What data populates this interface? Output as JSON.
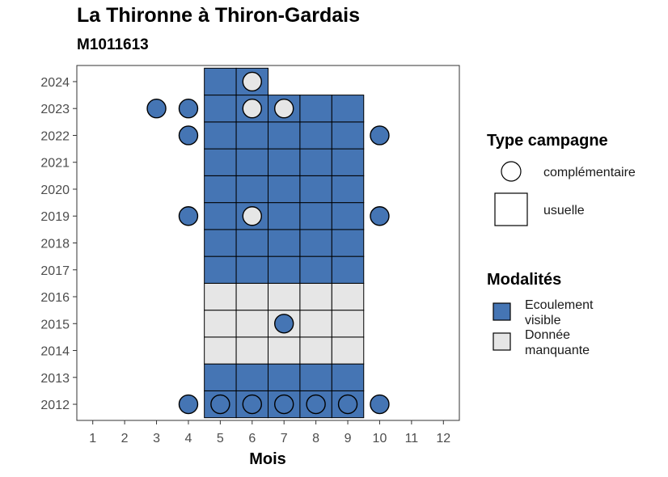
{
  "chart_data": {
    "type": "heatmap",
    "title": "La Thironne à Thiron-Gardais",
    "subtitle": "M1011613",
    "xlabel": "Mois",
    "ylabel": "",
    "x_ticks": [
      1,
      2,
      3,
      4,
      5,
      6,
      7,
      8,
      9,
      10,
      11,
      12
    ],
    "y_ticks": [
      2012,
      2013,
      2014,
      2015,
      2016,
      2017,
      2018,
      2019,
      2020,
      2021,
      2022,
      2023,
      2024
    ],
    "xlim": [
      0.5,
      12.5
    ],
    "ylim": [
      2011.4,
      2024.6
    ],
    "grid": false,
    "colors": {
      "Ecoulement visible": "#4575b4",
      "Donnée manquante": "#e6e6e6"
    },
    "legend_shape": {
      "title": "Type campagne",
      "entries": [
        {
          "label": "complémentaire",
          "shape": "circle"
        },
        {
          "label": "usuelle",
          "shape": "square"
        }
      ]
    },
    "legend_fill": {
      "title": "Modalités",
      "entries": [
        {
          "label": "Ecoulement visible",
          "lines": [
            "Ecoulement",
            "visible"
          ],
          "color": "#4575b4"
        },
        {
          "label": "Donnée manquante",
          "lines": [
            "Donnée",
            "manquante"
          ],
          "color": "#e6e6e6"
        }
      ]
    },
    "tiles": [
      {
        "year": 2012,
        "months": [
          5,
          6,
          7,
          8,
          9
        ],
        "modalite": "Ecoulement visible"
      },
      {
        "year": 2013,
        "months": [
          5,
          6,
          7,
          8,
          9
        ],
        "modalite": "Ecoulement visible"
      },
      {
        "year": 2014,
        "months": [
          5,
          6,
          7,
          8,
          9
        ],
        "modalite": "Donnée manquante"
      },
      {
        "year": 2015,
        "months": [
          5,
          6,
          7,
          8,
          9
        ],
        "modalite": "Donnée manquante"
      },
      {
        "year": 2016,
        "months": [
          5,
          6,
          7,
          8,
          9
        ],
        "modalite": "Donnée manquante"
      },
      {
        "year": 2017,
        "months": [
          5,
          6,
          7,
          8,
          9
        ],
        "modalite": "Ecoulement visible"
      },
      {
        "year": 2018,
        "months": [
          5,
          6,
          7,
          8,
          9
        ],
        "modalite": "Ecoulement visible"
      },
      {
        "year": 2019,
        "months": [
          5,
          6,
          7,
          8,
          9
        ],
        "modalite": "Ecoulement visible"
      },
      {
        "year": 2020,
        "months": [
          5,
          6,
          7,
          8,
          9
        ],
        "modalite": "Ecoulement visible"
      },
      {
        "year": 2021,
        "months": [
          5,
          6,
          7,
          8,
          9
        ],
        "modalite": "Ecoulement visible"
      },
      {
        "year": 2022,
        "months": [
          5,
          6,
          7,
          8,
          9
        ],
        "modalite": "Ecoulement visible"
      },
      {
        "year": 2023,
        "months": [
          5,
          6,
          7,
          8,
          9
        ],
        "modalite": "Ecoulement visible"
      },
      {
        "year": 2024,
        "months": [
          5,
          6
        ],
        "modalite": "Ecoulement visible"
      }
    ],
    "points": [
      {
        "month": 4,
        "year": 2012,
        "modalite": "Ecoulement visible"
      },
      {
        "month": 5,
        "year": 2012,
        "modalite": "Ecoulement visible"
      },
      {
        "month": 6,
        "year": 2012,
        "modalite": "Ecoulement visible"
      },
      {
        "month": 7,
        "year": 2012,
        "modalite": "Ecoulement visible"
      },
      {
        "month": 8,
        "year": 2012,
        "modalite": "Ecoulement visible"
      },
      {
        "month": 9,
        "year": 2012,
        "modalite": "Ecoulement visible"
      },
      {
        "month": 10,
        "year": 2012,
        "modalite": "Ecoulement visible"
      },
      {
        "month": 7,
        "year": 2015,
        "modalite": "Ecoulement visible"
      },
      {
        "month": 4,
        "year": 2019,
        "modalite": "Ecoulement visible"
      },
      {
        "month": 6,
        "year": 2019,
        "modalite": "Donnée manquante"
      },
      {
        "month": 10,
        "year": 2019,
        "modalite": "Ecoulement visible"
      },
      {
        "month": 4,
        "year": 2022,
        "modalite": "Ecoulement visible"
      },
      {
        "month": 10,
        "year": 2022,
        "modalite": "Ecoulement visible"
      },
      {
        "month": 3,
        "year": 2023,
        "modalite": "Ecoulement visible"
      },
      {
        "month": 4,
        "year": 2023,
        "modalite": "Ecoulement visible"
      },
      {
        "month": 6,
        "year": 2023,
        "modalite": "Donnée manquante"
      },
      {
        "month": 7,
        "year": 2023,
        "modalite": "Donnée manquante"
      },
      {
        "month": 6,
        "year": 2024,
        "modalite": "Donnée manquante"
      }
    ]
  }
}
